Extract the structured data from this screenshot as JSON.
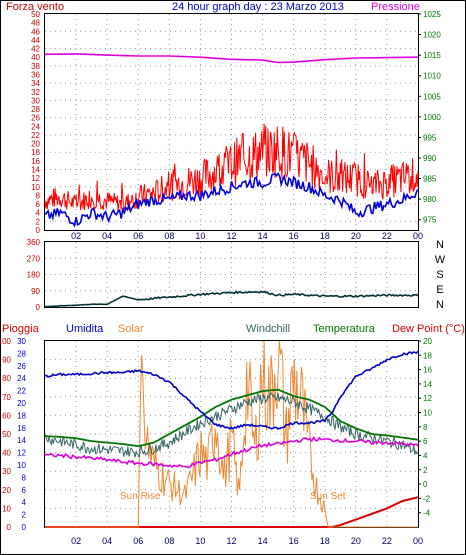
{
  "header": {
    "left_label": "Forza vento",
    "title": "24 hour graph day : 23 Marzo 2013",
    "right_label": "Pressione"
  },
  "colors": {
    "wind_gust": "#ff0000",
    "wind_avg": "#0000dd",
    "pressure": "#dd00dd",
    "direction": "#003333",
    "rain": "#dd0000",
    "humidity": "#0000cc",
    "solar": "#ee8833",
    "windchill": "#336666",
    "temperature": "#007700",
    "dew_point": "#dd00dd",
    "axis_left_red": "#cc0000",
    "axis_right_green": "#007700"
  },
  "time_ticks": [
    "02",
    "04",
    "06",
    "08",
    "10",
    "12",
    "14",
    "16",
    "18",
    "20",
    "22",
    "00"
  ],
  "chart_data": [
    {
      "type": "line",
      "name": "wind-pressure",
      "x_range": [
        0,
        24
      ],
      "y_left_ticks": [
        "0",
        "2",
        "4",
        "6",
        "8",
        "10",
        "12",
        "14",
        "16",
        "18",
        "20",
        "22",
        "24",
        "26",
        "28",
        "30",
        "32",
        "34",
        "36",
        "38",
        "40",
        "42",
        "44",
        "46",
        "48",
        "50"
      ],
      "y_left_range": [
        0,
        50
      ],
      "y_right_ticks": [
        "975",
        "980",
        "985",
        "990",
        "995",
        "1000",
        "1005",
        "1010",
        "1015",
        "1020",
        "1025"
      ],
      "y_right_range": [
        972.5,
        1025
      ],
      "grid": true,
      "series": [
        {
          "name": "Forza vento",
          "axis": "left",
          "x": [
            0,
            1,
            2,
            3,
            4,
            5,
            6,
            7,
            8,
            9,
            10,
            11,
            12,
            13,
            14,
            15,
            16,
            17,
            18,
            19,
            20,
            21,
            22,
            23,
            24
          ],
          "y": [
            8,
            9,
            7,
            9,
            8,
            7,
            9,
            10,
            12,
            13,
            14,
            16,
            18,
            20,
            21,
            22,
            20,
            18,
            15,
            14,
            14,
            12,
            13,
            14,
            15
          ]
        },
        {
          "name": "",
          "axis": "left",
          "x": [
            0,
            1,
            2,
            3,
            4,
            5,
            6,
            7,
            8,
            9,
            10,
            11,
            12,
            13,
            14,
            15,
            16,
            17,
            18,
            19,
            20,
            21,
            22,
            23,
            24
          ],
          "y": [
            3,
            4,
            2,
            4,
            3,
            4,
            6,
            7,
            7,
            8,
            8,
            9,
            10,
            11,
            11,
            12,
            11,
            10,
            8,
            7,
            4,
            5,
            6,
            7,
            9
          ]
        },
        {
          "name": "Pressione",
          "axis": "right",
          "x": [
            0,
            2,
            4,
            6,
            8,
            10,
            12,
            14,
            15,
            16,
            18,
            20,
            22,
            24
          ],
          "y": [
            1015.2,
            1015.3,
            1015.0,
            1014.8,
            1014.8,
            1014.5,
            1014.0,
            1013.8,
            1013.2,
            1013.3,
            1013.9,
            1014.3,
            1014.4,
            1014.5
          ]
        }
      ]
    },
    {
      "type": "line",
      "name": "wind-direction",
      "x_range": [
        0,
        24
      ],
      "y_left_ticks": [
        "0",
        "90",
        "180",
        "270",
        "360"
      ],
      "y_range": [
        0,
        360
      ],
      "y_right_labels": [
        "N",
        "W",
        "S",
        "E",
        "N"
      ],
      "grid": true,
      "series": [
        {
          "name": "",
          "x": [
            0,
            2,
            3,
            4,
            5,
            6,
            8,
            10,
            12,
            14,
            15,
            16,
            18,
            20,
            22,
            24
          ],
          "y": [
            2,
            10,
            15,
            15,
            60,
            40,
            55,
            70,
            80,
            85,
            65,
            70,
            60,
            60,
            65,
            65
          ]
        }
      ]
    },
    {
      "type": "line",
      "name": "humidity-temperature",
      "x_range": [
        0,
        24
      ],
      "legend": [
        "Pioggia",
        "Umidita",
        "Solar",
        "Windchill",
        "Temperatura",
        "Dew Point (°C)"
      ],
      "y_axis_rain_ticks": [
        "0",
        "10",
        "20",
        "30",
        "40",
        "50",
        "60",
        "70",
        "80",
        "90",
        "100"
      ],
      "y_axis_hum_ticks": [
        "0",
        "2",
        "4",
        "6",
        "8",
        "10",
        "12",
        "14",
        "16",
        "18",
        "20",
        "22",
        "24",
        "26",
        "28",
        "30"
      ],
      "y_axis_temp_ticks": [
        "-4",
        "-2",
        "0",
        "2",
        "4",
        "6",
        "8",
        "10",
        "12",
        "14",
        "16",
        "18",
        "20"
      ],
      "temp_range": [
        -6,
        20
      ],
      "grid": true,
      "annotations": [
        "Sun Rise",
        "Sun Set"
      ],
      "series": [
        {
          "name": "Umidita",
          "axis": "humidity",
          "x": [
            0,
            1,
            2,
            4,
            5,
            6,
            7,
            8,
            9,
            10,
            11,
            12,
            13,
            14,
            15,
            16,
            17,
            18,
            18.5,
            19,
            20,
            21,
            22,
            23,
            24
          ],
          "y": [
            81,
            82,
            82,
            83,
            83,
            84,
            82,
            78,
            70,
            62,
            55,
            53,
            55,
            54,
            53,
            56,
            56,
            57,
            62,
            70,
            81,
            85,
            90,
            93,
            94
          ]
        },
        {
          "name": "Solar",
          "axis": "humidity",
          "x": [
            0,
            6,
            6.2,
            6.5,
            7,
            8,
            9,
            9.5,
            10,
            10.5,
            11,
            11.5,
            12,
            12.5,
            13,
            13.5,
            14,
            14.5,
            15,
            15.5,
            16,
            16.5,
            17,
            17.5,
            18,
            18.2,
            24
          ],
          "y": [
            0,
            0,
            29,
            14,
            10,
            7,
            5,
            8,
            12,
            10,
            18,
            8,
            14,
            5,
            24,
            12,
            26,
            20,
            30,
            14,
            24,
            20,
            12,
            6,
            3,
            0,
            0
          ]
        },
        {
          "name": "Windchill",
          "axis": "temperature",
          "x": [
            0,
            1,
            2,
            3,
            4,
            5,
            6,
            7,
            8,
            9,
            10,
            11,
            12,
            13,
            14,
            15,
            16,
            17,
            18,
            19,
            20,
            21,
            22,
            23,
            24
          ],
          "y": [
            6.5,
            6.0,
            5.5,
            5.0,
            4.8,
            4.6,
            4.5,
            5.0,
            5.8,
            7.2,
            8.5,
            9.5,
            10.5,
            11.5,
            12.0,
            12.0,
            11.5,
            10.5,
            9.5,
            8.0,
            7.0,
            6.5,
            6.0,
            5.5,
            4.5
          ]
        },
        {
          "name": "Temperatura",
          "axis": "temperature",
          "x": [
            0,
            1,
            2,
            3,
            4,
            5,
            6,
            7,
            8,
            9,
            10,
            11,
            12,
            13,
            14,
            15,
            16,
            17,
            18,
            19,
            20,
            21,
            22,
            23,
            24
          ],
          "y": [
            6.7,
            6.6,
            6.4,
            6.0,
            5.8,
            5.6,
            5.3,
            5.8,
            7.0,
            8.2,
            9.4,
            10.8,
            11.8,
            12.4,
            13.0,
            13.2,
            12.3,
            11.8,
            10.8,
            8.8,
            7.8,
            7.0,
            6.8,
            6.5,
            6.2
          ]
        },
        {
          "name": "Dew Point (°C)",
          "axis": "temperature",
          "x": [
            0,
            1,
            2,
            3,
            4,
            5,
            6,
            7,
            8,
            9,
            10,
            11,
            12,
            13,
            14,
            15,
            16,
            17,
            18,
            19,
            20,
            21,
            22,
            23,
            24
          ],
          "y": [
            4.0,
            4.0,
            3.8,
            3.6,
            3.4,
            3.1,
            2.9,
            2.8,
            2.6,
            2.4,
            3.0,
            3.4,
            4.2,
            4.8,
            5.4,
            5.6,
            6.0,
            6.3,
            6.2,
            6.1,
            6.0,
            5.8,
            5.8,
            5.6,
            5.4
          ]
        },
        {
          "name": "Pioggia",
          "axis": "rain",
          "x": [
            0,
            18.5,
            19,
            20,
            21,
            22,
            23,
            24
          ],
          "y": [
            0,
            0,
            1,
            4,
            7,
            10,
            14,
            16
          ]
        }
      ]
    }
  ]
}
